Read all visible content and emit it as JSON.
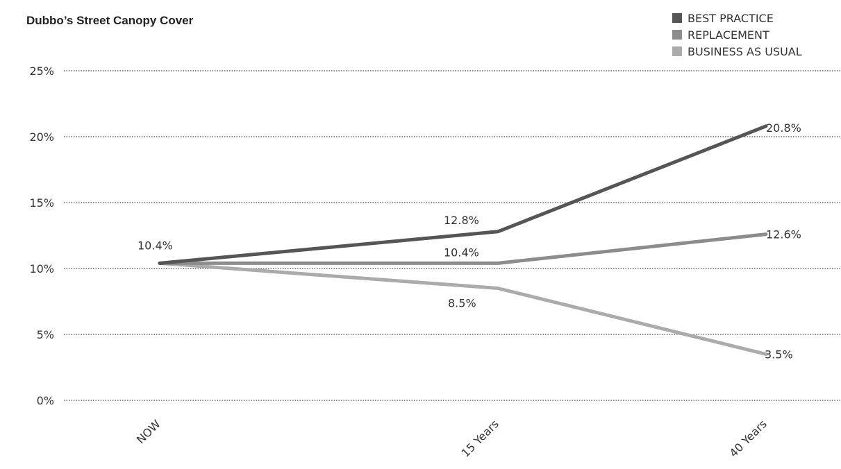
{
  "chart_data": {
    "type": "line",
    "title": "Dubbo’s Street Canopy Cover",
    "categories": [
      "NOW",
      "15 Years",
      "40 Years"
    ],
    "y_ticks": [
      "0%",
      "5%",
      "10%",
      "15%",
      "20%",
      "25%"
    ],
    "ylim": [
      0,
      25
    ],
    "grid": true,
    "legend_position": "top-right",
    "series": [
      {
        "name": "BEST PRACTICE",
        "color": "#555555",
        "values": [
          10.4,
          12.8,
          20.8
        ],
        "labels": [
          "10.4%",
          "12.8%",
          "20.8%"
        ]
      },
      {
        "name": "REPLACEMENT",
        "color": "#8c8c8c",
        "values": [
          10.4,
          10.4,
          12.6
        ],
        "labels": [
          "",
          "10.4%",
          "12.6%"
        ]
      },
      {
        "name": "BUSINESS AS USUAL",
        "color": "#ababab",
        "values": [
          10.4,
          8.5,
          3.5
        ],
        "labels": [
          "",
          "8.5%",
          "3.5%"
        ]
      }
    ]
  }
}
